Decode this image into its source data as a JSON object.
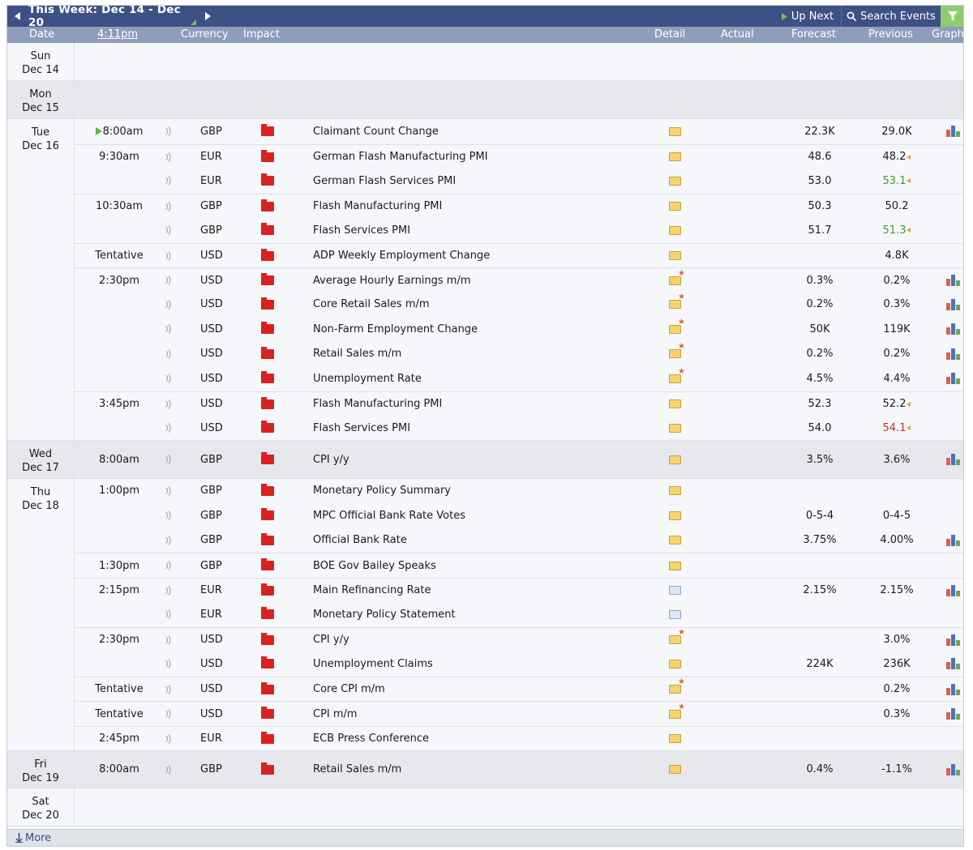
{
  "toolbar": {
    "week_label": "This Week: Dec 14 - Dec 20",
    "up_next": "Up Next",
    "search_events": "Search Events"
  },
  "columns": {
    "date": "Date",
    "time": "4:11pm",
    "currency": "Currency",
    "impact": "Impact",
    "detail": "Detail",
    "actual": "Actual",
    "forecast": "Forecast",
    "previous": "Previous",
    "graph": "Graph"
  },
  "days": [
    {
      "day": "Sun",
      "date": "Dec 14",
      "events": []
    },
    {
      "day": "Mon",
      "date": "Dec 15",
      "events": []
    },
    {
      "day": "Tue",
      "date": "Dec 16",
      "events": [
        {
          "time": "8:00am",
          "next": true,
          "currency": "GBP",
          "name": "Claimant Count Change",
          "detail": "folder",
          "forecast": "22.3K",
          "previous": "29.0K",
          "prev_style": "",
          "revised": false,
          "graph": true
        },
        {
          "time": "9:30am",
          "currency": "EUR",
          "name": "German Flash Manufacturing PMI",
          "detail": "folder",
          "forecast": "48.6",
          "previous": "48.2",
          "prev_style": "",
          "revised": true,
          "graph": false,
          "sep": true
        },
        {
          "time": "",
          "currency": "EUR",
          "name": "German Flash Services PMI",
          "detail": "folder",
          "forecast": "53.0",
          "previous": "53.1",
          "prev_style": "up",
          "revised": true,
          "graph": false
        },
        {
          "time": "10:30am",
          "currency": "GBP",
          "name": "Flash Manufacturing PMI",
          "detail": "folder",
          "forecast": "50.3",
          "previous": "50.2",
          "prev_style": "",
          "revised": false,
          "graph": false,
          "sep": true
        },
        {
          "time": "",
          "currency": "GBP",
          "name": "Flash Services PMI",
          "detail": "folder",
          "forecast": "51.7",
          "previous": "51.3",
          "prev_style": "up",
          "revised": true,
          "graph": false
        },
        {
          "time": "Tentative",
          "currency": "USD",
          "name": "ADP Weekly Employment Change",
          "detail": "folder",
          "forecast": "",
          "previous": "4.8K",
          "prev_style": "",
          "revised": false,
          "graph": false,
          "sep": true
        },
        {
          "time": "2:30pm",
          "currency": "USD",
          "name": "Average Hourly Earnings m/m",
          "detail": "star",
          "forecast": "0.3%",
          "previous": "0.2%",
          "prev_style": "",
          "revised": false,
          "graph": true,
          "sep": true
        },
        {
          "time": "",
          "currency": "USD",
          "name": "Core Retail Sales m/m",
          "detail": "star",
          "forecast": "0.2%",
          "previous": "0.3%",
          "prev_style": "",
          "revised": false,
          "graph": true
        },
        {
          "time": "",
          "currency": "USD",
          "name": "Non-Farm Employment Change",
          "detail": "star",
          "forecast": "50K",
          "previous": "119K",
          "prev_style": "",
          "revised": false,
          "graph": true
        },
        {
          "time": "",
          "currency": "USD",
          "name": "Retail Sales m/m",
          "detail": "star",
          "forecast": "0.2%",
          "previous": "0.2%",
          "prev_style": "",
          "revised": false,
          "graph": true
        },
        {
          "time": "",
          "currency": "USD",
          "name": "Unemployment Rate",
          "detail": "star",
          "forecast": "4.5%",
          "previous": "4.4%",
          "prev_style": "",
          "revised": false,
          "graph": true
        },
        {
          "time": "3:45pm",
          "currency": "USD",
          "name": "Flash Manufacturing PMI",
          "detail": "folder",
          "forecast": "52.3",
          "previous": "52.2",
          "prev_style": "",
          "revised": true,
          "graph": false,
          "sep": true
        },
        {
          "time": "",
          "currency": "USD",
          "name": "Flash Services PMI",
          "detail": "folder",
          "forecast": "54.0",
          "previous": "54.1",
          "prev_style": "down",
          "revised": true,
          "graph": false
        }
      ]
    },
    {
      "day": "Wed",
      "date": "Dec 17",
      "events": [
        {
          "time": "8:00am",
          "currency": "GBP",
          "name": "CPI y/y",
          "detail": "folder",
          "forecast": "3.5%",
          "previous": "3.6%",
          "prev_style": "",
          "revised": false,
          "graph": true
        }
      ]
    },
    {
      "day": "Thu",
      "date": "Dec 18",
      "events": [
        {
          "time": "1:00pm",
          "currency": "GBP",
          "name": "Monetary Policy Summary",
          "detail": "folder",
          "forecast": "",
          "previous": "",
          "prev_style": "",
          "revised": false,
          "graph": false
        },
        {
          "time": "",
          "currency": "GBP",
          "name": "MPC Official Bank Rate Votes",
          "detail": "folder",
          "forecast": "0-5-4",
          "previous": "0-4-5",
          "prev_style": "",
          "revised": false,
          "graph": false
        },
        {
          "time": "",
          "currency": "GBP",
          "name": "Official Bank Rate",
          "detail": "folder",
          "forecast": "3.75%",
          "previous": "4.00%",
          "prev_style": "",
          "revised": false,
          "graph": true
        },
        {
          "time": "1:30pm",
          "currency": "GBP",
          "name": "BOE Gov Bailey Speaks",
          "detail": "folder",
          "forecast": "",
          "previous": "",
          "prev_style": "",
          "revised": false,
          "graph": false,
          "sep": true
        },
        {
          "time": "2:15pm",
          "currency": "EUR",
          "name": "Main Refinancing Rate",
          "detail": "blue",
          "forecast": "2.15%",
          "previous": "2.15%",
          "prev_style": "",
          "revised": false,
          "graph": true,
          "sep": true
        },
        {
          "time": "",
          "currency": "EUR",
          "name": "Monetary Policy Statement",
          "detail": "blue",
          "forecast": "",
          "previous": "",
          "prev_style": "",
          "revised": false,
          "graph": false
        },
        {
          "time": "2:30pm",
          "currency": "USD",
          "name": "CPI y/y",
          "detail": "star",
          "forecast": "",
          "previous": "3.0%",
          "prev_style": "",
          "revised": false,
          "graph": true,
          "sep": true
        },
        {
          "time": "",
          "currency": "USD",
          "name": "Unemployment Claims",
          "detail": "folder",
          "forecast": "224K",
          "previous": "236K",
          "prev_style": "",
          "revised": false,
          "graph": true
        },
        {
          "time": "Tentative",
          "currency": "USD",
          "name": "Core CPI m/m",
          "detail": "star",
          "forecast": "",
          "previous": "0.2%",
          "prev_style": "",
          "revised": false,
          "graph": true,
          "sep": true
        },
        {
          "time": "Tentative",
          "currency": "USD",
          "name": "CPI m/m",
          "detail": "star",
          "forecast": "",
          "previous": "0.3%",
          "prev_style": "",
          "revised": false,
          "graph": true,
          "sep": true
        },
        {
          "time": "2:45pm",
          "currency": "EUR",
          "name": "ECB Press Conference",
          "detail": "folder",
          "forecast": "",
          "previous": "",
          "prev_style": "",
          "revised": false,
          "graph": false,
          "sep": true
        }
      ]
    },
    {
      "day": "Fri",
      "date": "Dec 19",
      "events": [
        {
          "time": "8:00am",
          "currency": "GBP",
          "name": "Retail Sales m/m",
          "detail": "folder",
          "forecast": "0.4%",
          "previous": "-1.1%",
          "prev_style": "",
          "revised": false,
          "graph": true
        }
      ]
    },
    {
      "day": "Sat",
      "date": "Dec 20",
      "events": []
    }
  ],
  "footer": {
    "more": "More"
  },
  "colors": {
    "topbar": "#3d5184",
    "header": "#8f9dbd",
    "impact_high": "#d9211f",
    "better": "#3d9c27",
    "worse": "#cc2a24",
    "revision": "#e2a43e",
    "filter": "#8fcc6e"
  }
}
